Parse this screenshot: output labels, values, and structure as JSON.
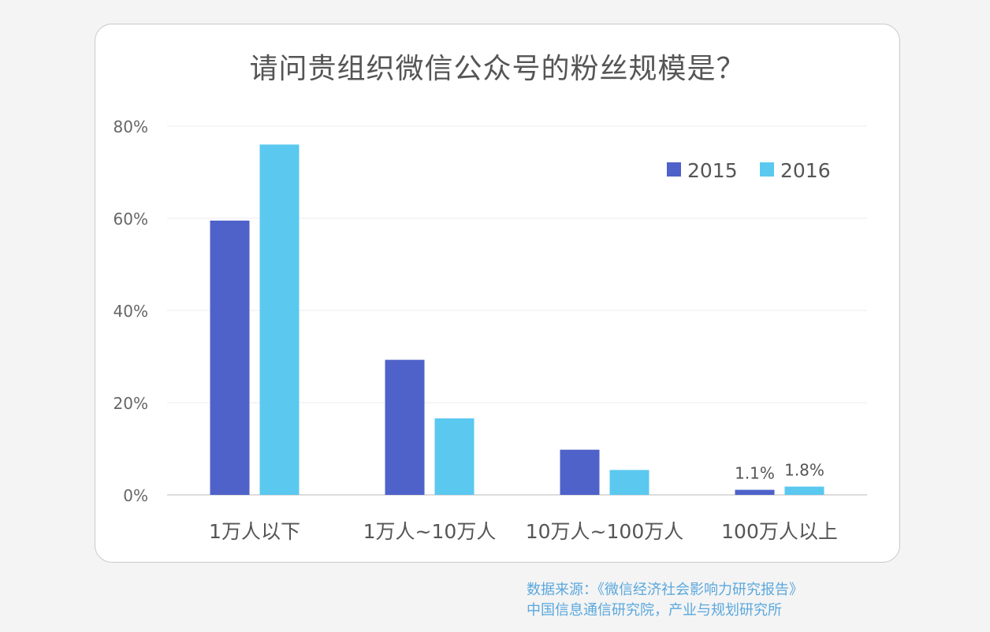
{
  "chart_data": {
    "type": "bar",
    "title": "请问贵组织微信公众号的粉丝规模是？",
    "categories": [
      "1万人以下",
      "1万人~10万人",
      "10万人~100万人",
      "100万人以上"
    ],
    "series": [
      {
        "name": "2015",
        "color": "#4e62c9",
        "values": [
          59.5,
          29.3,
          9.8,
          1.1
        ]
      },
      {
        "name": "2016",
        "color": "#5bc8ef",
        "values": [
          76.0,
          16.6,
          5.4,
          1.8
        ]
      }
    ],
    "data_labels": [
      {
        "series": "2015",
        "category": "100万人以上",
        "text": "1.1%"
      },
      {
        "series": "2016",
        "category": "100万人以上",
        "text": "1.8%"
      }
    ],
    "y_ticks": [
      "0%",
      "20%",
      "40%",
      "60%",
      "80%"
    ],
    "ylim": [
      0,
      80
    ],
    "grid": true,
    "legend_position": "top-right"
  },
  "source": {
    "line1": "数据来源：《微信经济社会影响力研究报告》",
    "line2": "中国信息通信研究院，产业与规划研究所"
  }
}
